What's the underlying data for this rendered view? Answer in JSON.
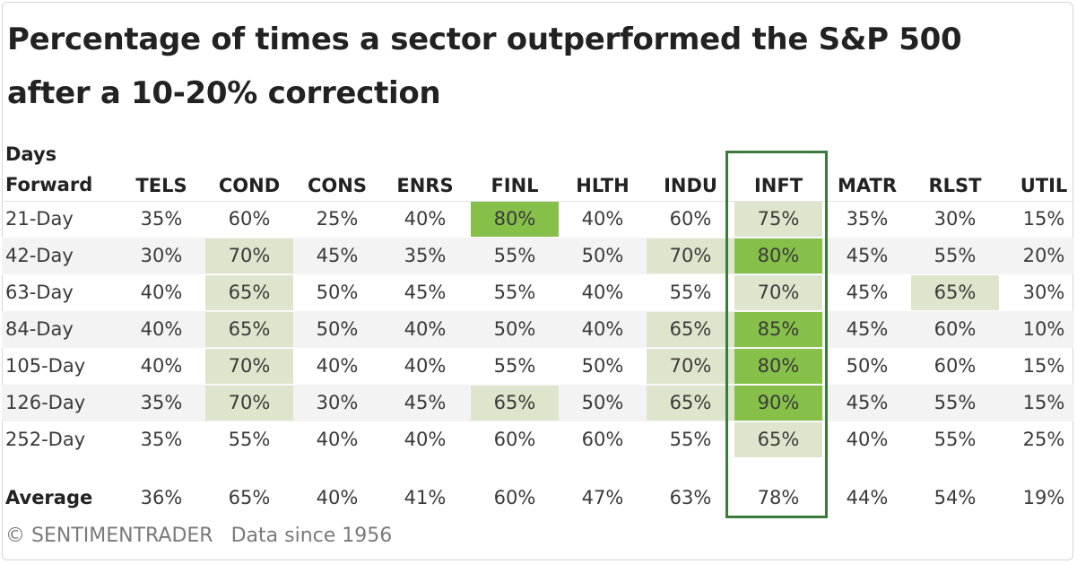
{
  "chart_data": {
    "type": "table",
    "title_line1": "Percentage of times a sector outperformed the S&P 500",
    "title_line2": "after a 10-20% correction",
    "header_label_line1": "Days",
    "header_label_line2": "Forward",
    "columns": [
      "TELS",
      "COND",
      "CONS",
      "ENRS",
      "FINL",
      "HLTH",
      "INDU",
      "INFT",
      "MATR",
      "RLST",
      "UTIL"
    ],
    "highlighted_column": "INFT",
    "rows": [
      {
        "label": "21-Day",
        "values": [
          "35%",
          "60%",
          "25%",
          "40%",
          "80%",
          "40%",
          "60%",
          "75%",
          "35%",
          "30%",
          "15%"
        ]
      },
      {
        "label": "42-Day",
        "values": [
          "30%",
          "70%",
          "45%",
          "35%",
          "55%",
          "50%",
          "70%",
          "80%",
          "45%",
          "55%",
          "20%"
        ]
      },
      {
        "label": "63-Day",
        "values": [
          "40%",
          "65%",
          "50%",
          "45%",
          "55%",
          "40%",
          "55%",
          "70%",
          "45%",
          "65%",
          "30%"
        ]
      },
      {
        "label": "84-Day",
        "values": [
          "40%",
          "65%",
          "50%",
          "40%",
          "50%",
          "40%",
          "65%",
          "85%",
          "45%",
          "60%",
          "10%"
        ]
      },
      {
        "label": "105-Day",
        "values": [
          "40%",
          "70%",
          "40%",
          "40%",
          "55%",
          "50%",
          "70%",
          "80%",
          "50%",
          "60%",
          "15%"
        ]
      },
      {
        "label": "126-Day",
        "values": [
          "35%",
          "70%",
          "30%",
          "45%",
          "65%",
          "50%",
          "65%",
          "90%",
          "45%",
          "55%",
          "15%"
        ]
      },
      {
        "label": "252-Day",
        "values": [
          "35%",
          "55%",
          "40%",
          "40%",
          "60%",
          "60%",
          "55%",
          "65%",
          "40%",
          "55%",
          "25%"
        ]
      }
    ],
    "average": {
      "label": "Average",
      "values": [
        "36%",
        "65%",
        "40%",
        "41%",
        "60%",
        "47%",
        "63%",
        "78%",
        "44%",
        "54%",
        "19%"
      ]
    },
    "highlight_rules": {
      "light_min_percent": 65,
      "dark_min_percent": 80,
      "light_color": "#dde6cc",
      "dark_color": "#86c049"
    }
  },
  "footer": {
    "brand": "© SENTIMENTRADER",
    "note": "Data since 1956"
  }
}
